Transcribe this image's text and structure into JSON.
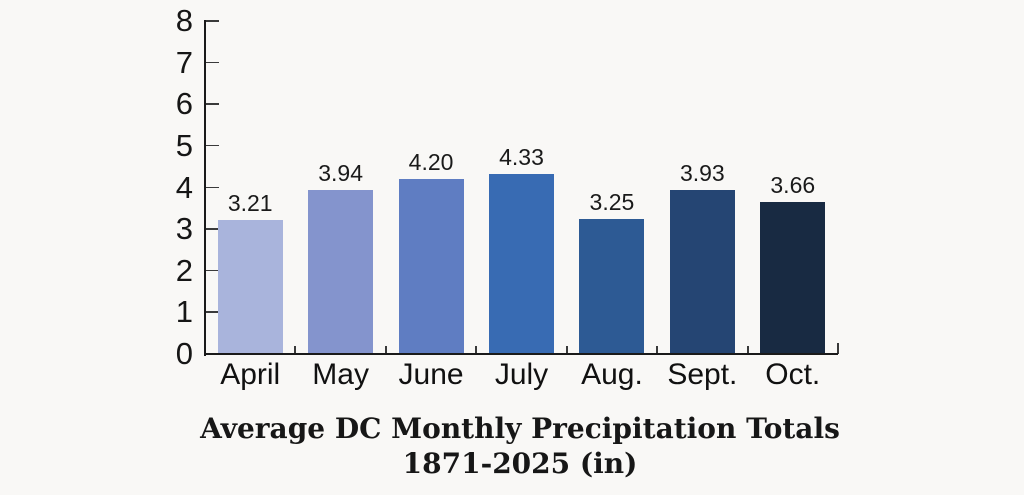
{
  "background": "#f9f8f6",
  "title": {
    "line1": "Average DC Monthly Precipitation Totals",
    "line2": "1871-2025 (in)"
  },
  "chart_data": {
    "type": "bar",
    "title": "Average DC Monthly Precipitation Totals 1871-2025 (in)",
    "categories": [
      "April",
      "May",
      "June",
      "July",
      "Aug.",
      "Sept.",
      "Oct."
    ],
    "values": [
      3.21,
      3.94,
      4.2,
      4.33,
      3.25,
      3.93,
      3.66
    ],
    "value_labels": [
      "3.21",
      "3.94",
      "4.20",
      "4.33",
      "3.25",
      "3.93",
      "3.66"
    ],
    "bar_colors": [
      "#a9b4dc",
      "#8494cd",
      "#5f7dc2",
      "#386bb3",
      "#2d5a94",
      "#254573",
      "#182a42"
    ],
    "xlabel": "",
    "ylabel": "",
    "ylim": [
      0,
      8
    ],
    "yticks": [
      0,
      1,
      2,
      3,
      4,
      5,
      6,
      7,
      8
    ],
    "grid": false,
    "legend": false,
    "data_labels": true,
    "axis_color": "#1a1a1a",
    "tick_color": "#3a3a3a",
    "label_color": "#1a1a1a"
  }
}
